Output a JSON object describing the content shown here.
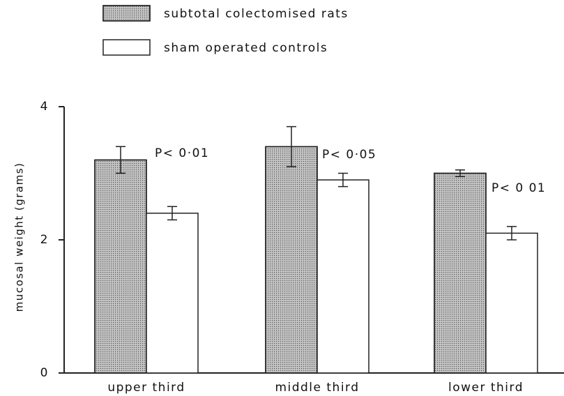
{
  "chart_data": {
    "type": "bar",
    "categories": [
      "upper third",
      "middle third",
      "lower third"
    ],
    "series": [
      {
        "name": "subtotal colectomised rats",
        "color": "#c4c4c4",
        "values": [
          3.2,
          3.4,
          3.0
        ],
        "errors": [
          0.2,
          0.3,
          0.05
        ]
      },
      {
        "name": "sham operated controls",
        "color": "#ffffff",
        "values": [
          2.4,
          2.9,
          2.1
        ],
        "errors": [
          0.1,
          0.1,
          0.1
        ]
      }
    ],
    "annotations": [
      "P< 0·01",
      "P< 0·05",
      "P< 0 01"
    ],
    "y_label": "mucosal weight (grams)",
    "ylim": [
      0,
      4
    ],
    "yticks": [
      0,
      2,
      4
    ]
  }
}
